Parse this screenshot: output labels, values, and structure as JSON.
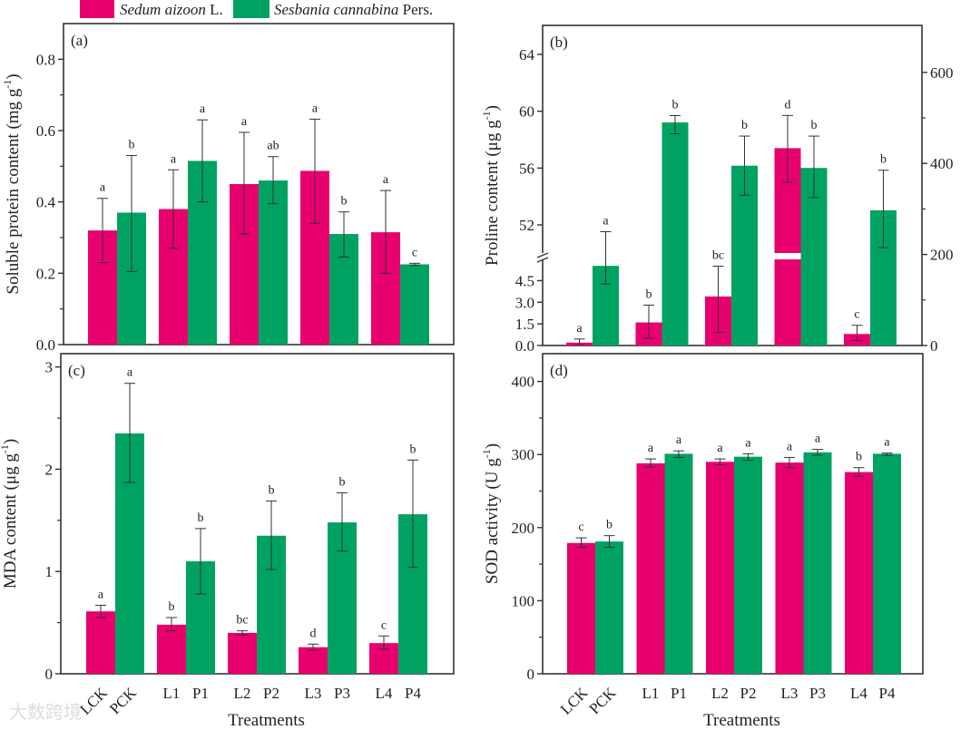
{
  "legend": {
    "series": [
      {
        "italic": "Sedum aizoon",
        "suffix": " L.",
        "color": "#E8006E"
      },
      {
        "italic": "Sesbania cannabina",
        "suffix": " Pers.",
        "color": "#00A262"
      }
    ]
  },
  "watermark": "大数跨境",
  "chart_data": [
    {
      "type": "bar",
      "panel": "(a)",
      "ylabel": [
        "Soluble protein content (mg g",
        "-1",
        ")"
      ],
      "xlabel": "",
      "ylim": [
        0,
        0.9
      ],
      "yticks": [
        "0.0",
        "0.2",
        "0.4",
        "0.6",
        "0.8"
      ],
      "ytick_values": [
        0,
        0.2,
        0.4,
        0.6,
        0.8
      ],
      "groups": [
        "LCK/PCK",
        "L1/P1",
        "L2/P2",
        "L3/P3",
        "L4/P4"
      ],
      "series": [
        {
          "name": "Sedum aizoon L.",
          "values": [
            0.32,
            0.38,
            0.45,
            0.487,
            0.315
          ],
          "err_low": [
            0.23,
            0.27,
            0.31,
            0.34,
            0.2
          ],
          "err_high": [
            0.41,
            0.49,
            0.595,
            0.632,
            0.432
          ],
          "letters": [
            "a",
            "a",
            "a",
            "a",
            "a"
          ]
        },
        {
          "name": "Sesbania cannabina Pers.",
          "values": [
            0.37,
            0.515,
            0.46,
            0.31,
            0.225
          ],
          "err_low": [
            0.205,
            0.4,
            0.395,
            0.245,
            0.222
          ],
          "err_high": [
            0.53,
            0.63,
            0.527,
            0.372,
            0.228
          ],
          "letters": [
            "b",
            "a",
            "ab",
            "b",
            "c"
          ]
        }
      ]
    },
    {
      "type": "bar",
      "panel": "(b)",
      "ylabel": [
        "Proline content (μg g",
        "-1",
        ")"
      ],
      "xlabel": "",
      "left_axis_broken": true,
      "yticks_lower": [
        "0.0",
        "1.5",
        "3.0",
        "4.5"
      ],
      "ytick_values_lower": [
        0,
        1.5,
        3.0,
        4.5
      ],
      "yticks_upper": [
        "52",
        "56",
        "60",
        "64"
      ],
      "ytick_values_upper": [
        52,
        56,
        60,
        64
      ],
      "yticks_right": [
        "0",
        "200",
        "400",
        "600"
      ],
      "ytick_values_right": [
        0,
        200,
        400,
        600
      ],
      "ylim_right": [
        0,
        700
      ],
      "groups": [
        "LCK/PCK",
        "L1/P1",
        "L2/P2",
        "L3/P3",
        "L4/P4"
      ],
      "series": [
        {
          "name": "Sedum aizoon L.",
          "axis": "left",
          "values": [
            0.2,
            1.6,
            3.4,
            57.4,
            0.8
          ],
          "err_low": [
            0.0,
            0.5,
            0.9,
            55.0,
            0.35
          ],
          "err_high": [
            0.45,
            2.8,
            5.5,
            59.7,
            1.4
          ],
          "letters": [
            "a",
            "b",
            "bc",
            "d",
            "c"
          ]
        },
        {
          "name": "Sesbania cannabina Pers.",
          "axis": "right",
          "values": [
            175,
            490,
            395,
            390,
            297
          ],
          "err_low": [
            135,
            465,
            330,
            325,
            215
          ],
          "err_high": [
            250,
            505,
            460,
            460,
            385
          ],
          "letters": [
            "a",
            "b",
            "b",
            "b",
            "b"
          ]
        }
      ]
    },
    {
      "type": "bar",
      "panel": "(c)",
      "ylabel": [
        "MDA content (μg g",
        "-1",
        ")"
      ],
      "xlabel": "Treatments",
      "ylim": [
        0,
        3.13
      ],
      "yticks": [
        "0",
        "1",
        "2",
        "3"
      ],
      "ytick_values": [
        0,
        1,
        2,
        3
      ],
      "xticks": [
        "LCK",
        "PCK",
        "L1",
        "P1",
        "L2",
        "P2",
        "L3",
        "P3",
        "L4",
        "P4"
      ],
      "groups": [
        "LCK/PCK",
        "L1/P1",
        "L2/P2",
        "L3/P3",
        "L4/P4"
      ],
      "series": [
        {
          "name": "Sedum aizoon L.",
          "values": [
            0.61,
            0.48,
            0.4,
            0.26,
            0.3
          ],
          "err_low": [
            0.55,
            0.42,
            0.38,
            0.23,
            0.24
          ],
          "err_high": [
            0.67,
            0.55,
            0.42,
            0.29,
            0.37
          ],
          "letters": [
            "a",
            "b",
            "bc",
            "d",
            "c"
          ]
        },
        {
          "name": "Sesbania cannabina Pers.",
          "values": [
            2.35,
            1.1,
            1.35,
            1.48,
            1.56
          ],
          "err_low": [
            1.87,
            0.78,
            1.02,
            1.2,
            1.04
          ],
          "err_high": [
            2.84,
            1.42,
            1.69,
            1.77,
            2.09
          ],
          "letters": [
            "a",
            "b",
            "b",
            "b",
            "b"
          ]
        }
      ]
    },
    {
      "type": "bar",
      "panel": "(d)",
      "ylabel": [
        "SOD  activity (U g",
        "-1",
        ")"
      ],
      "xlabel": "Treatments",
      "ylim": [
        0,
        438
      ],
      "yticks": [
        "0",
        "100",
        "200",
        "300",
        "400"
      ],
      "ytick_values": [
        0,
        100,
        200,
        300,
        400
      ],
      "xticks": [
        "LCK",
        "PCK",
        "L1",
        "P1",
        "L2",
        "P2",
        "L3",
        "P3",
        "L4",
        "P4"
      ],
      "groups": [
        "LCK/PCK",
        "L1/P1",
        "L2/P2",
        "L3/P3",
        "L4/P4"
      ],
      "series": [
        {
          "name": "Sedum aizoon L.",
          "values": [
            179,
            288,
            290,
            289,
            276
          ],
          "err_low": [
            173,
            283,
            286,
            282,
            270
          ],
          "err_high": [
            186,
            294,
            294,
            296,
            282
          ],
          "letters": [
            "c",
            "a",
            "a",
            "a",
            "b"
          ]
        },
        {
          "name": "Sesbania cannabina Pers.",
          "values": [
            181,
            301,
            297,
            303,
            301
          ],
          "err_low": [
            173,
            296,
            292,
            299,
            299
          ],
          "err_high": [
            189,
            305,
            301,
            307,
            302
          ],
          "letters": [
            "b",
            "a",
            "a",
            "a",
            "a"
          ]
        }
      ]
    }
  ]
}
